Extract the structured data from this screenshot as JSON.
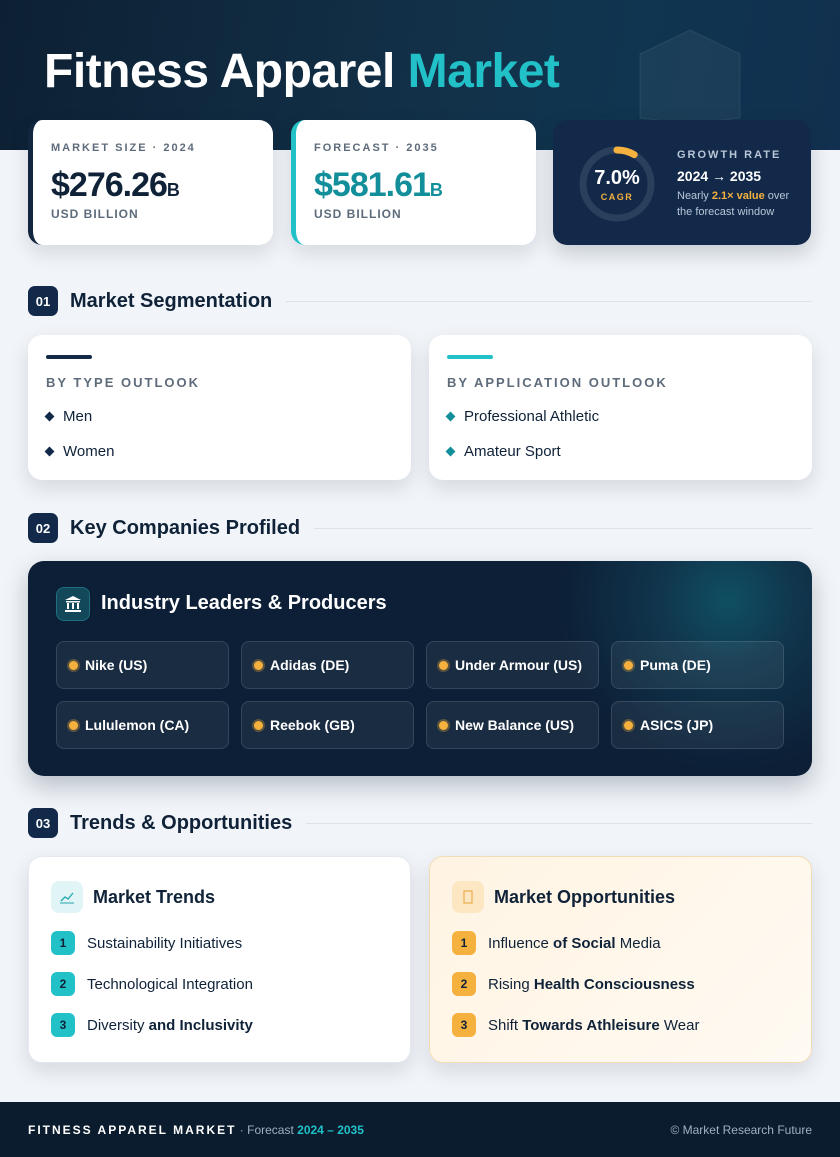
{
  "header": {
    "title": "Fitness Apparel",
    "title_accent": "Market"
  },
  "stats": {
    "market_size": {
      "label": "MARKET SIZE · 2024",
      "value": "$276.26",
      "unit": "B",
      "sub": "USD BILLION"
    },
    "forecast": {
      "label": "FORECAST · 2035",
      "value": "$581.61",
      "unit": "B",
      "sub": "USD BILLION"
    },
    "growth": {
      "cagr": "7.0%",
      "cagr_label": "CAGR",
      "label": "GROWTH RATE",
      "period": "2024 → 2035",
      "note": [
        "Nearly ",
        "2.1× value",
        " over the forecast window"
      ]
    }
  },
  "segmentation": {
    "number": "01",
    "title": "Market Segmentation",
    "groups": [
      {
        "title": "BY TYPE OUTLOOK",
        "items": [
          "Men",
          "Women"
        ]
      },
      {
        "title": "BY APPLICATION OUTLOOK",
        "items": [
          "Professional Athletic",
          "Amateur Sport"
        ]
      }
    ]
  },
  "companies": {
    "number": "02",
    "title": "Key Companies Profiled",
    "panel_title": "Industry Leaders & Producers",
    "items": [
      "Nike (US)",
      "Adidas (DE)",
      "Under Armour (US)",
      "Puma (DE)",
      "Lululemon (CA)",
      "Reebok (GB)",
      "New Balance (US)",
      "ASICS (JP)"
    ]
  },
  "trends": {
    "number": "03",
    "title": "Trends & Opportunities",
    "cards": [
      {
        "title": "Market Trends",
        "items": [
          {
            "num": "1",
            "parts": [
              "Sustainability Initiatives"
            ]
          },
          {
            "num": "2",
            "parts": [
              "Technological Integration"
            ]
          },
          {
            "num": "3",
            "parts": [
              "Diversity ",
              "and Inclusivity"
            ]
          }
        ]
      },
      {
        "title": "Market Opportunities",
        "items": [
          {
            "num": "1",
            "parts": [
              "Influence ",
              "of Social",
              " Media"
            ]
          },
          {
            "num": "2",
            "parts": [
              "Rising ",
              "Health Consciousness"
            ]
          },
          {
            "num": "3",
            "parts": [
              "Shift ",
              "Towards Athleisure",
              " Wear"
            ]
          }
        ]
      }
    ]
  },
  "footer": {
    "brand": "FITNESS APPAREL MARKET",
    "forecast_label": " · Forecast ",
    "period": "2024 – 2035",
    "copyright": "© Market Research Future"
  }
}
